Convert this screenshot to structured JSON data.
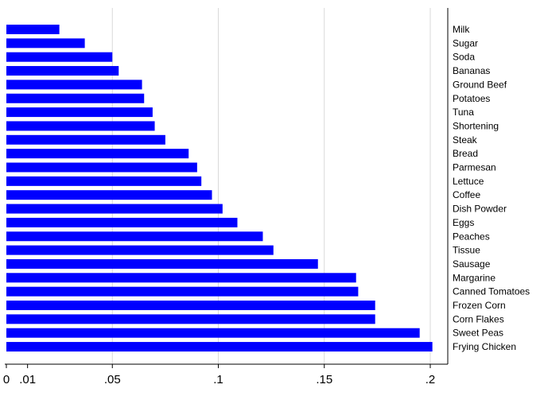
{
  "chart_data": {
    "type": "bar",
    "orientation": "horizontal",
    "title": "",
    "xlabel": "",
    "ylabel": "",
    "xlim": [
      0,
      0.21
    ],
    "grid": true,
    "legend": "none",
    "bar_color": "#0000ff",
    "x_ticks": [
      {
        "value": 0,
        "label": "0"
      },
      {
        "value": 0.01,
        "label": ".01"
      },
      {
        "value": 0.05,
        "label": ".05"
      },
      {
        "value": 0.1,
        "label": ".1"
      },
      {
        "value": 0.15,
        "label": ".15"
      },
      {
        "value": 0.2,
        "label": ".2"
      }
    ],
    "categories": [
      "Milk",
      "Sugar",
      "Soda",
      "Bananas",
      "Ground Beef",
      "Potatoes",
      "Tuna",
      "Shortening",
      "Steak",
      "Bread",
      "Parmesan",
      "Lettuce",
      "Coffee",
      "Dish Powder",
      "Eggs",
      "Peaches",
      "Tissue",
      "Sausage",
      "Margarine",
      "Canned Tomatoes",
      "Frozen Corn",
      "Corn Flakes",
      "Sweet Peas",
      "Frying Chicken"
    ],
    "values": [
      0.025,
      0.037,
      0.05,
      0.053,
      0.064,
      0.065,
      0.069,
      0.07,
      0.075,
      0.086,
      0.09,
      0.092,
      0.097,
      0.102,
      0.109,
      0.121,
      0.126,
      0.147,
      0.165,
      0.166,
      0.174,
      0.174,
      0.195,
      0.201
    ]
  }
}
